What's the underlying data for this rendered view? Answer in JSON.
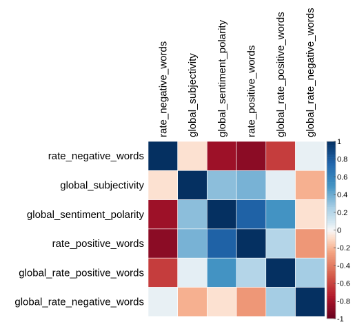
{
  "chart_data": {
    "type": "heatmap",
    "title": "",
    "row_labels": [
      "rate_negative_words",
      "global_subjectivity",
      "global_sentiment_polarity",
      "rate_positive_words",
      "global_rate_positive_words",
      "global_rate_negative_words"
    ],
    "column_labels": [
      "rate_negative_words",
      "global_subjectivity",
      "global_sentiment_polarity",
      "rate_positive_words",
      "global_rate_positive_words",
      "global_rate_negative_words"
    ],
    "values": [
      [
        1.0,
        -0.08,
        -0.82,
        -0.88,
        -0.62,
        0.04
      ],
      [
        -0.08,
        1.0,
        0.32,
        0.37,
        0.05,
        -0.22
      ],
      [
        -0.82,
        0.32,
        1.0,
        0.77,
        0.5,
        -0.08
      ],
      [
        -0.88,
        0.37,
        0.77,
        1.0,
        0.21,
        -0.3
      ],
      [
        -0.62,
        0.05,
        0.5,
        0.21,
        1.0,
        0.26
      ],
      [
        0.04,
        -0.22,
        -0.08,
        -0.3,
        0.26,
        1.0
      ]
    ],
    "colorbar": {
      "min": -1,
      "max": 1,
      "tick_labels": [
        "1",
        "0.8",
        "0.6",
        "0.4",
        "0.2",
        "0",
        "-0.2",
        "-0.4",
        "-0.6",
        "-0.8",
        "-1"
      ],
      "tick_values": [
        1,
        0.8,
        0.6,
        0.4,
        0.2,
        0,
        -0.2,
        -0.4,
        -0.6,
        -0.8,
        -1
      ]
    },
    "colors": {
      "negative_end": "#67001F",
      "neutral": "#F7F7F7",
      "positive_end": "#053061",
      "grid_line": "#ffffff",
      "frame": "#bdbdbd"
    }
  }
}
